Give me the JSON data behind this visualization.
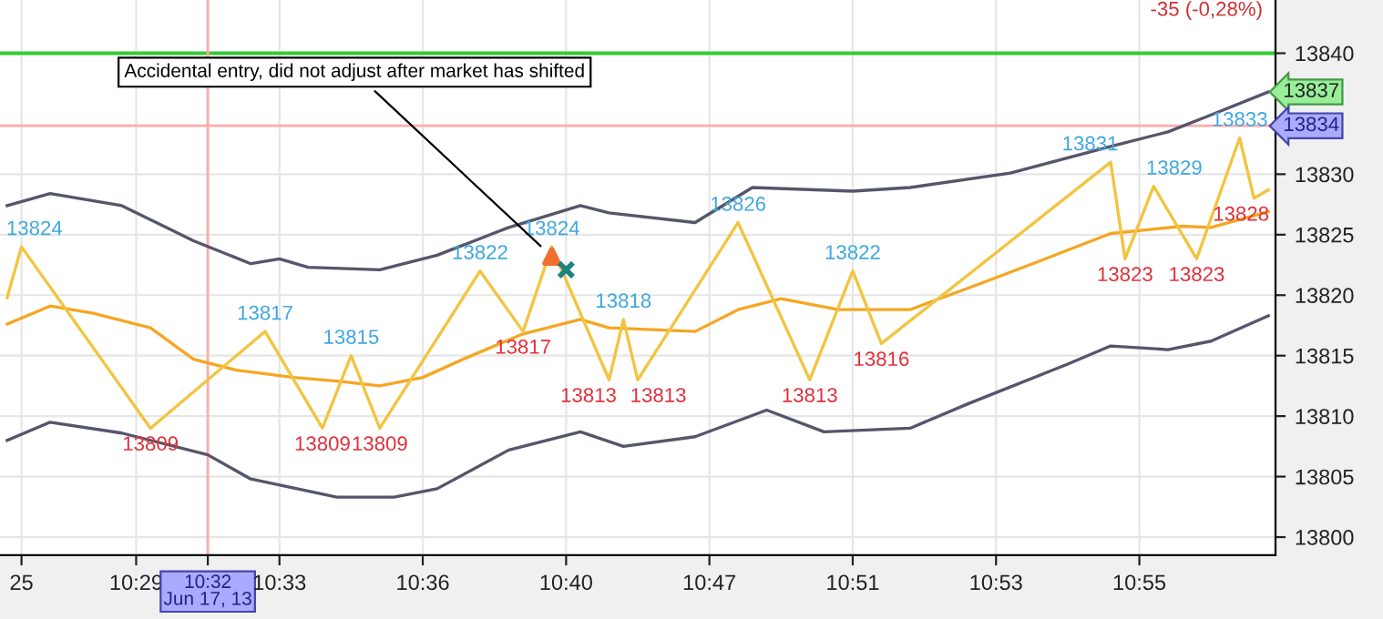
{
  "chart_data": {
    "type": "line",
    "categories": [
      null,
      "25",
      null,
      null,
      null,
      null,
      null,
      null,
      null,
      "10:29",
      null,
      null,
      null,
      null,
      "10:32\nJun 17, 13",
      null,
      null,
      null,
      null,
      "10:33",
      null,
      null,
      null,
      null,
      null,
      null,
      null,
      null,
      null,
      "10:36",
      null,
      null,
      null,
      null,
      null,
      null,
      null,
      null,
      null,
      "10:40",
      null,
      null,
      null,
      null,
      null,
      null,
      null,
      null,
      null,
      "10:47",
      null,
      null,
      null,
      null,
      null,
      null,
      null,
      null,
      null,
      "10:51",
      null,
      null,
      null,
      null,
      null,
      null,
      null,
      null,
      null,
      "10:53",
      null,
      null,
      null,
      null,
      null,
      null,
      null,
      null,
      null,
      "10:55",
      null,
      null,
      null,
      null,
      null,
      null,
      null,
      null,
      null
    ],
    "series": [
      {
        "color": "#55556b",
        "values": [
          13827.4,
          null,
          null,
          13828.4,
          null,
          null,
          null,
          null,
          13827.4,
          null,
          null,
          null,
          null,
          13824.5,
          null,
          null,
          null,
          13822.6,
          null,
          13823.0,
          null,
          13822.3,
          null,
          null,
          null,
          null,
          13822.1,
          null,
          null,
          null,
          13823.3,
          null,
          null,
          null,
          null,
          13825.6,
          null,
          null,
          null,
          null,
          13827.4,
          null,
          13826.8,
          null,
          null,
          null,
          null,
          null,
          13826.0,
          null,
          null,
          null,
          13828.9,
          null,
          null,
          null,
          null,
          null,
          null,
          13828.6,
          null,
          null,
          null,
          13828.9,
          null,
          null,
          null,
          null,
          null,
          null,
          13830.1,
          null,
          null,
          null,
          null,
          null,
          null,
          13832.3,
          null,
          null,
          null,
          13833.5,
          null,
          null,
          13834.9,
          null,
          null,
          null,
          13836.8
        ],
        "value_labels": [
          null,
          null,
          null,
          null,
          null,
          null,
          null,
          null,
          null,
          null,
          null,
          null,
          null,
          null,
          null,
          null,
          null,
          null,
          null,
          null,
          null,
          null,
          null,
          null,
          null,
          null,
          null,
          null,
          null,
          null,
          null,
          null,
          null,
          null,
          null,
          null,
          null,
          null,
          null,
          null,
          null,
          null,
          null,
          null,
          null,
          null,
          null,
          null,
          null,
          null,
          null,
          null,
          null,
          null,
          null,
          null,
          null,
          null,
          null,
          null,
          null,
          null,
          null,
          null,
          null,
          null,
          null,
          null,
          null,
          null,
          null,
          null,
          null,
          null,
          null,
          null,
          null,
          null,
          null,
          null,
          null,
          null,
          null,
          null,
          null,
          null,
          null,
          null,
          "13837"
        ]
      },
      {
        "color": "#55556b",
        "values": [
          13808.0,
          null,
          null,
          13809.5,
          null,
          null,
          null,
          null,
          13808.6,
          null,
          null,
          null,
          null,
          null,
          13806.8,
          null,
          null,
          13804.8,
          null,
          null,
          null,
          null,
          null,
          13803.3,
          null,
          null,
          null,
          13803.3,
          null,
          null,
          13804.0,
          null,
          null,
          null,
          null,
          13807.2,
          null,
          null,
          null,
          null,
          13808.7,
          null,
          null,
          13807.5,
          null,
          null,
          null,
          null,
          13808.3,
          null,
          null,
          null,
          null,
          13810.5,
          null,
          null,
          null,
          13808.7,
          null,
          null,
          null,
          null,
          null,
          13809.0,
          null,
          null,
          null,
          13811.0,
          null,
          null,
          null,
          null,
          null,
          null,
          13814.3,
          null,
          null,
          13815.8,
          null,
          null,
          null,
          13815.5,
          null,
          null,
          13816.2,
          null,
          null,
          null,
          13818.3
        ]
      },
      {
        "color": "#f5a623",
        "values": [
          13817.6,
          null,
          null,
          13819.1,
          null,
          null,
          13818.5,
          null,
          null,
          null,
          13817.3,
          null,
          null,
          13814.7,
          null,
          null,
          13813.8,
          null,
          null,
          null,
          13813.2,
          null,
          null,
          13812.9,
          null,
          null,
          13812.5,
          null,
          null,
          13813.2,
          null,
          null,
          13814.8,
          null,
          null,
          null,
          13816.8,
          null,
          null,
          null,
          13818.0,
          null,
          13817.3,
          null,
          null,
          null,
          null,
          null,
          13817.0,
          null,
          null,
          13818.8,
          null,
          null,
          13819.7,
          null,
          null,
          null,
          13818.8,
          null,
          null,
          null,
          null,
          13818.8,
          null,
          null,
          null,
          null,
          13821.0,
          null,
          null,
          null,
          13822.8,
          null,
          null,
          null,
          null,
          13825.1,
          null,
          null,
          null,
          null,
          13825.7,
          null,
          13825.6,
          null,
          null,
          null,
          13826.9
        ]
      },
      {
        "color": "#f2c440",
        "values": [
          13819.8,
          13824,
          null,
          null,
          null,
          null,
          null,
          null,
          null,
          null,
          13809,
          null,
          null,
          null,
          null,
          null,
          null,
          null,
          13817,
          null,
          null,
          null,
          13809,
          null,
          13815,
          null,
          13809,
          null,
          null,
          null,
          null,
          null,
          null,
          13822,
          null,
          null,
          13817,
          null,
          13824,
          null,
          null,
          null,
          13813,
          13818,
          13813,
          null,
          null,
          null,
          null,
          null,
          null,
          13826,
          null,
          null,
          null,
          null,
          13813,
          null,
          null,
          13822,
          null,
          13816,
          null,
          null,
          null,
          null,
          null,
          null,
          null,
          null,
          null,
          null,
          null,
          null,
          null,
          null,
          null,
          13831,
          13823,
          null,
          13829,
          null,
          null,
          13823,
          null,
          null,
          13833,
          13828,
          13828.7
        ],
        "value_labels": [
          null,
          "13824",
          null,
          null,
          null,
          null,
          null,
          null,
          null,
          null,
          "13809",
          null,
          null,
          null,
          null,
          null,
          null,
          null,
          "13817",
          null,
          null,
          null,
          "13809",
          null,
          "13815",
          null,
          "13809",
          null,
          null,
          null,
          null,
          null,
          null,
          "13822",
          null,
          null,
          "13817",
          null,
          "13824",
          null,
          null,
          null,
          "13813",
          "13818",
          "13813",
          null,
          null,
          null,
          null,
          null,
          null,
          "13826",
          null,
          null,
          null,
          null,
          "13813",
          null,
          null,
          "13822",
          null,
          "13816",
          null,
          null,
          null,
          null,
          null,
          null,
          null,
          null,
          null,
          null,
          null,
          null,
          null,
          null,
          null,
          "13831",
          "13823",
          null,
          "13829",
          null,
          null,
          "13823",
          null,
          null,
          "13833",
          "13828",
          null
        ],
        "colors": [
          null,
          "#3fa7e0",
          null,
          null,
          null,
          null,
          null,
          null,
          null,
          null,
          "#e0303a",
          null,
          null,
          null,
          null,
          null,
          null,
          null,
          "#3fa7e0",
          null,
          null,
          null,
          "#e0303a",
          null,
          "#3fa7e0",
          null,
          "#e0303a",
          null,
          null,
          null,
          null,
          null,
          null,
          "#3fa7e0",
          null,
          null,
          "#e0303a",
          null,
          "#3fa7e0",
          null,
          null,
          null,
          "#e0303a",
          "#3fa7e0",
          "#e0303a",
          null,
          null,
          null,
          null,
          null,
          null,
          "#3fa7e0",
          null,
          null,
          null,
          null,
          "#e0303a",
          null,
          null,
          "#3fa7e0",
          null,
          "#e0303a",
          null,
          null,
          null,
          null,
          null,
          null,
          null,
          null,
          null,
          null,
          null,
          null,
          null,
          null,
          null,
          "#3fa7e0",
          "#e0303a",
          null,
          "#3fa7e0",
          null,
          null,
          "#e0303a",
          null,
          null,
          "#3fa7e0",
          "#e0303a",
          null
        ]
      },
      {
        "type": "scatter",
        "marker": "triangle",
        "color": "#f07030",
        "values": [
          null,
          null,
          null,
          null,
          null,
          null,
          null,
          null,
          null,
          null,
          null,
          null,
          null,
          null,
          null,
          null,
          null,
          null,
          null,
          null,
          null,
          null,
          null,
          null,
          null,
          null,
          null,
          null,
          null,
          null,
          null,
          null,
          null,
          null,
          null,
          null,
          null,
          null,
          13823.2,
          null,
          null,
          null,
          null,
          null,
          null,
          null,
          null,
          null,
          null,
          null,
          null,
          null,
          null,
          null,
          null,
          null,
          null,
          null,
          null,
          null,
          null,
          null,
          null,
          null,
          null,
          null,
          null,
          null,
          null,
          null,
          null,
          null,
          null,
          null,
          null,
          null,
          null,
          null,
          null,
          null,
          null,
          null,
          null,
          null,
          null,
          null,
          null,
          null,
          null
        ]
      },
      {
        "type": "scatter",
        "marker": "cross",
        "color": "#1f8080",
        "values": [
          null,
          null,
          null,
          null,
          null,
          null,
          null,
          null,
          null,
          null,
          null,
          null,
          null,
          null,
          null,
          null,
          null,
          null,
          null,
          null,
          null,
          null,
          null,
          null,
          null,
          null,
          null,
          null,
          null,
          null,
          null,
          null,
          null,
          null,
          null,
          null,
          null,
          null,
          null,
          13822.1,
          null,
          null,
          null,
          null,
          null,
          null,
          null,
          null,
          null,
          null,
          null,
          null,
          null,
          null,
          null,
          null,
          null,
          null,
          null,
          null,
          null,
          null,
          null,
          null,
          null,
          null,
          null,
          null,
          null,
          null,
          null,
          null,
          null,
          null,
          null,
          null,
          null,
          null,
          null,
          null,
          null,
          null,
          null,
          null,
          null,
          null,
          null,
          null,
          null
        ]
      }
    ],
    "ylim": [
      13798.5,
      13844.4
    ],
    "yticks": [
      13800,
      13805,
      13810,
      13815,
      13820,
      13825,
      13830,
      13840
    ],
    "ref_lines": [
      {
        "axis": "y",
        "value": 13840,
        "color": "#33cc33"
      },
      {
        "axis": "y",
        "value": 13834,
        "color": "#ffaaaa",
        "label": "13834"
      },
      {
        "axis": "x",
        "value": "10:32\nJun 17, 13",
        "color": "#ffaaaa"
      }
    ],
    "annotations": [
      "Accidental entry, did not adjust after market has shifted",
      "-35 (-0,28%)"
    ],
    "grid": true,
    "legend": false
  }
}
